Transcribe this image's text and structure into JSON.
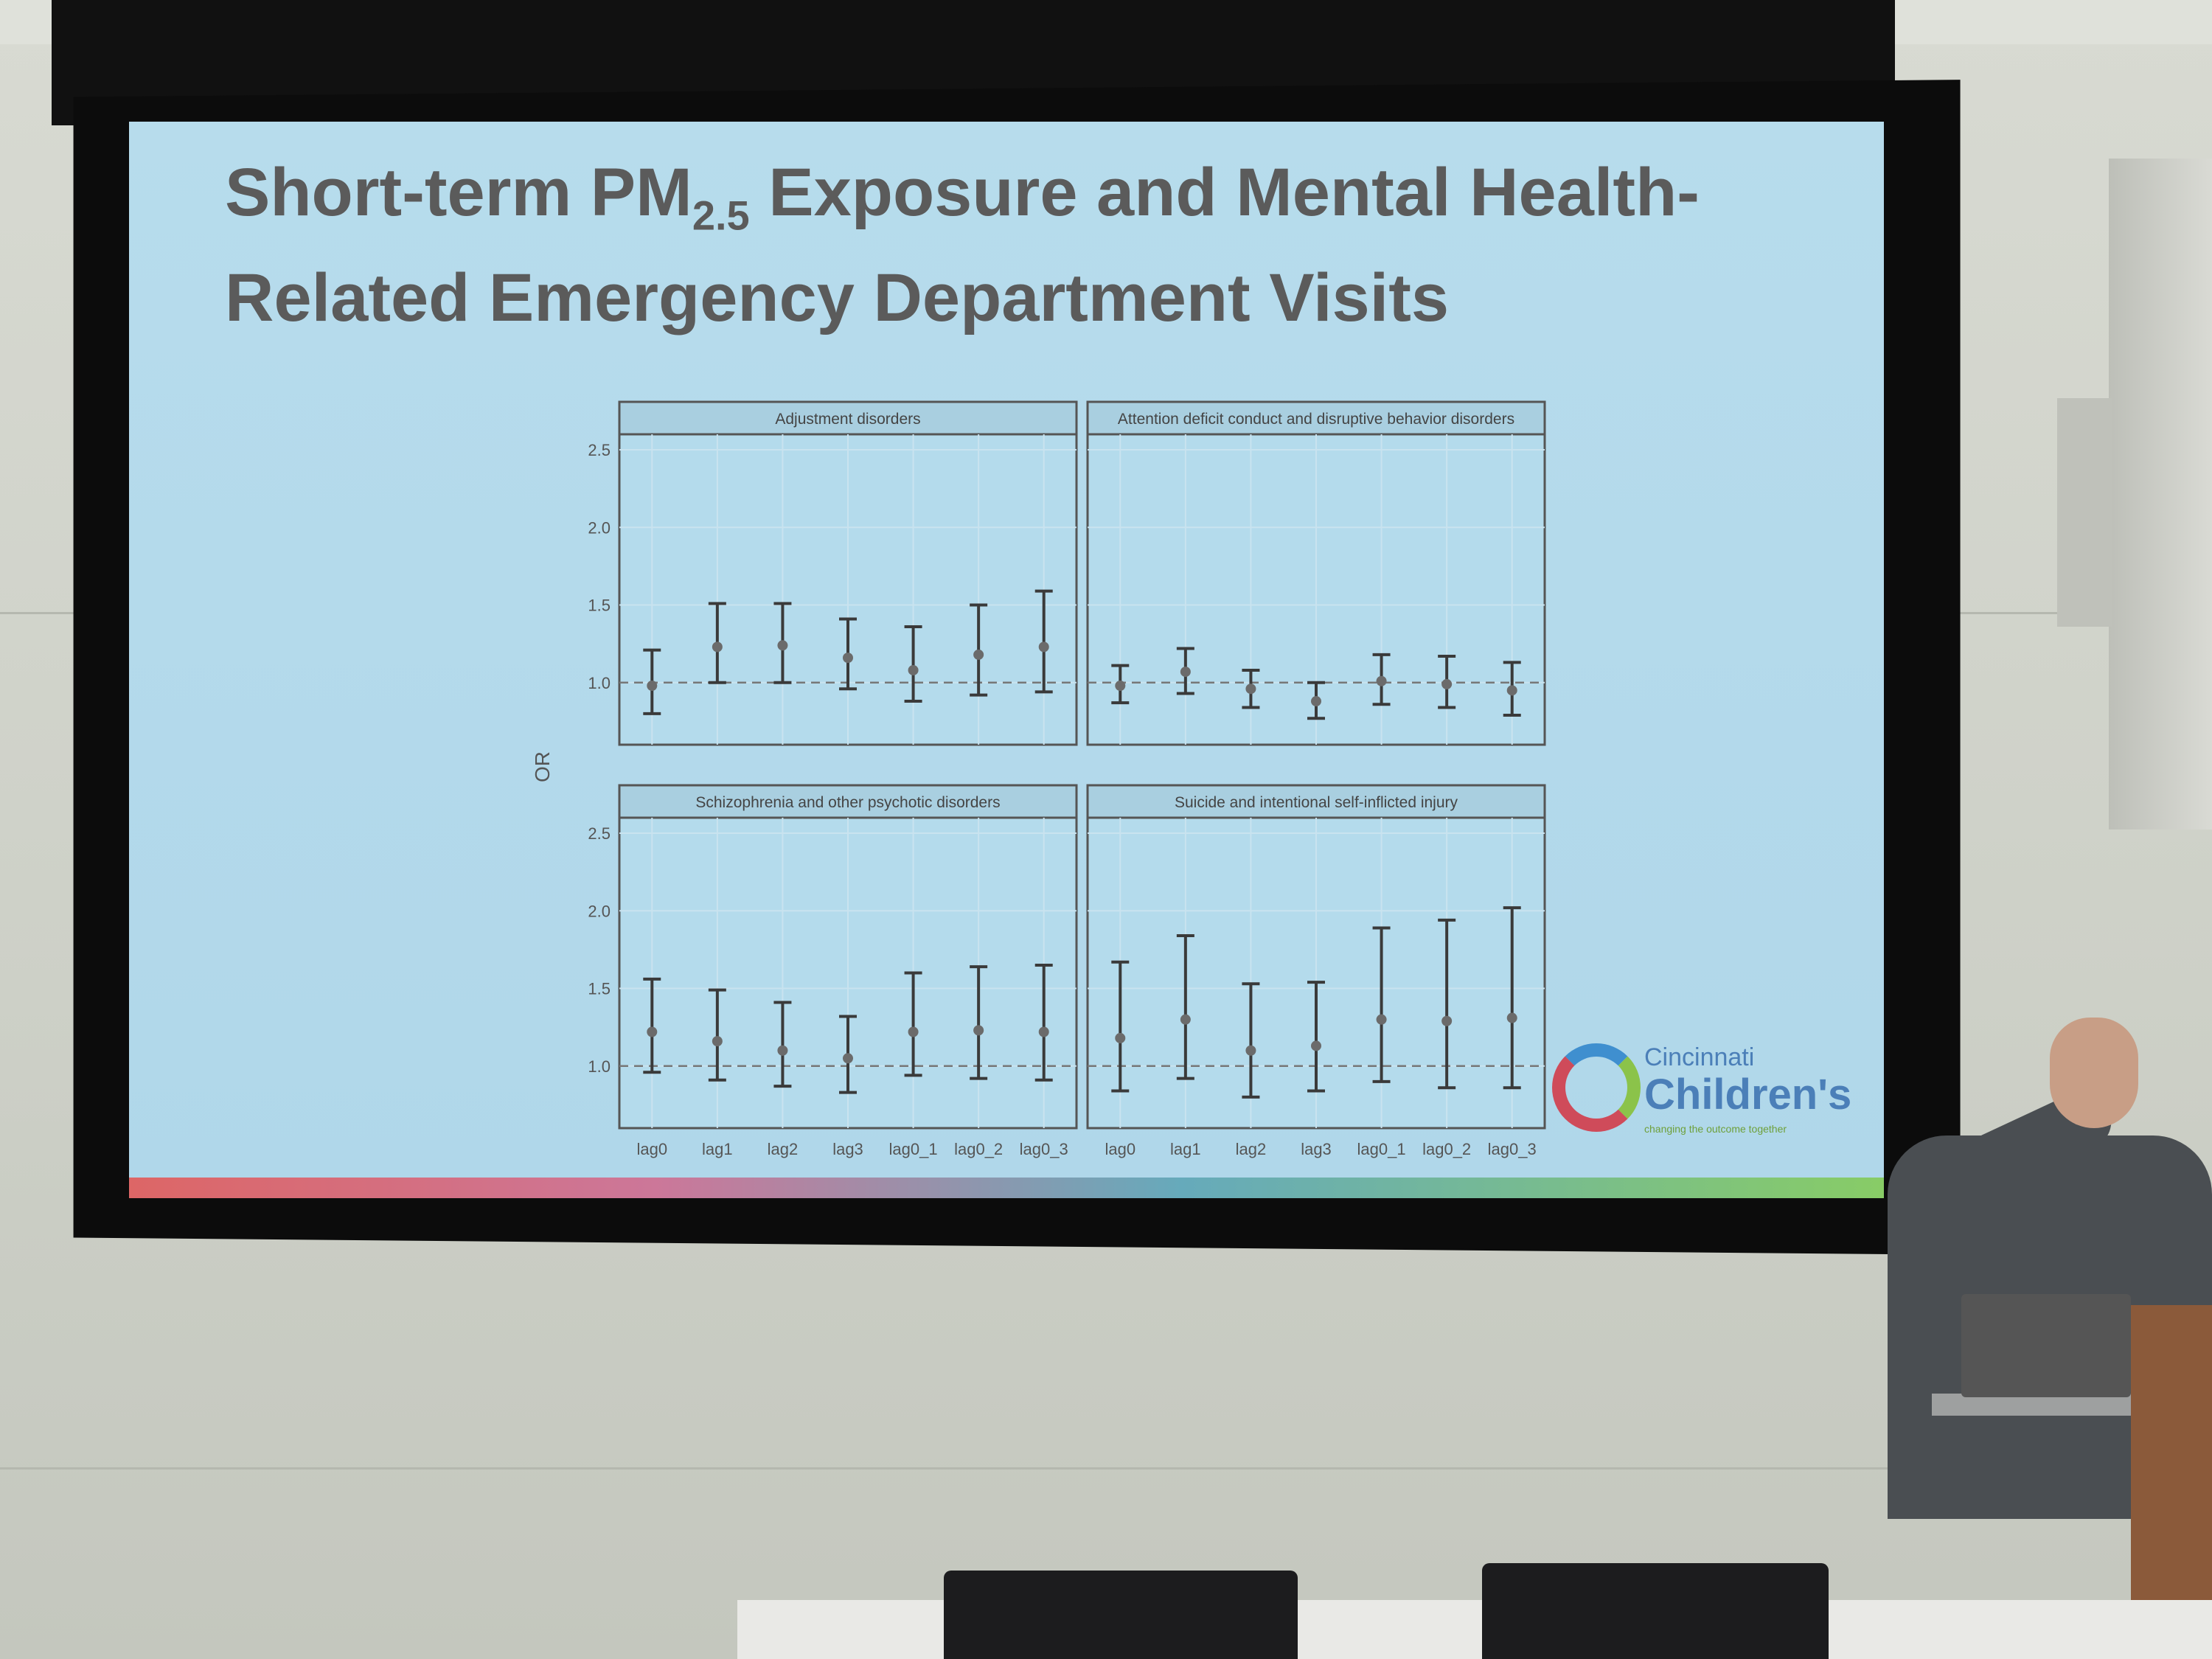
{
  "slide": {
    "title_line1_a": "Short-term PM",
    "title_sub": "2.5",
    "title_line1_b": " Exposure and Mental Health-",
    "title_line2": "Related Emergency Department Visits"
  },
  "logo": {
    "line1": "Cincinnati",
    "line2": "Children's",
    "line3": "changing the outcome together"
  },
  "chart_data": {
    "type": "errorbar",
    "ylabel": "OR",
    "xlabel": "",
    "ylim": [
      0.6,
      2.6
    ],
    "yticks": [
      "1.0",
      "1.5",
      "2.0",
      "2.5"
    ],
    "ytick_values": [
      1.0,
      1.5,
      2.0,
      2.5
    ],
    "reference_line": 1.0,
    "categories": [
      "lag0",
      "lag1",
      "lag2",
      "lag3",
      "lag0_1",
      "lag0_2",
      "lag0_3"
    ],
    "grid": true,
    "panels": [
      {
        "title": "Adjustment disorders",
        "estimate": [
          0.98,
          1.23,
          1.24,
          1.16,
          1.08,
          1.18,
          1.23
        ],
        "lower": [
          0.8,
          1.0,
          1.0,
          0.96,
          0.88,
          0.92,
          0.94
        ],
        "upper": [
          1.21,
          1.51,
          1.51,
          1.41,
          1.36,
          1.5,
          1.59
        ]
      },
      {
        "title": "Attention deficit conduct and disruptive behavior disorders",
        "estimate": [
          0.98,
          1.07,
          0.96,
          0.88,
          1.01,
          0.99,
          0.95
        ],
        "lower": [
          0.87,
          0.93,
          0.84,
          0.77,
          0.86,
          0.84,
          0.79
        ],
        "upper": [
          1.11,
          1.22,
          1.08,
          1.0,
          1.18,
          1.17,
          1.13
        ]
      },
      {
        "title": "Schizophrenia and other psychotic disorders",
        "estimate": [
          1.22,
          1.16,
          1.1,
          1.05,
          1.22,
          1.23,
          1.22
        ],
        "lower": [
          0.96,
          0.91,
          0.87,
          0.83,
          0.94,
          0.92,
          0.91
        ],
        "upper": [
          1.56,
          1.49,
          1.41,
          1.32,
          1.6,
          1.64,
          1.65
        ]
      },
      {
        "title": "Suicide and intentional self-inflicted injury",
        "estimate": [
          1.18,
          1.3,
          1.1,
          1.13,
          1.3,
          1.29,
          1.31
        ],
        "lower": [
          0.84,
          0.92,
          0.8,
          0.84,
          0.9,
          0.86,
          0.86
        ],
        "upper": [
          1.67,
          1.84,
          1.53,
          1.54,
          1.89,
          1.94,
          2.02
        ]
      }
    ]
  }
}
